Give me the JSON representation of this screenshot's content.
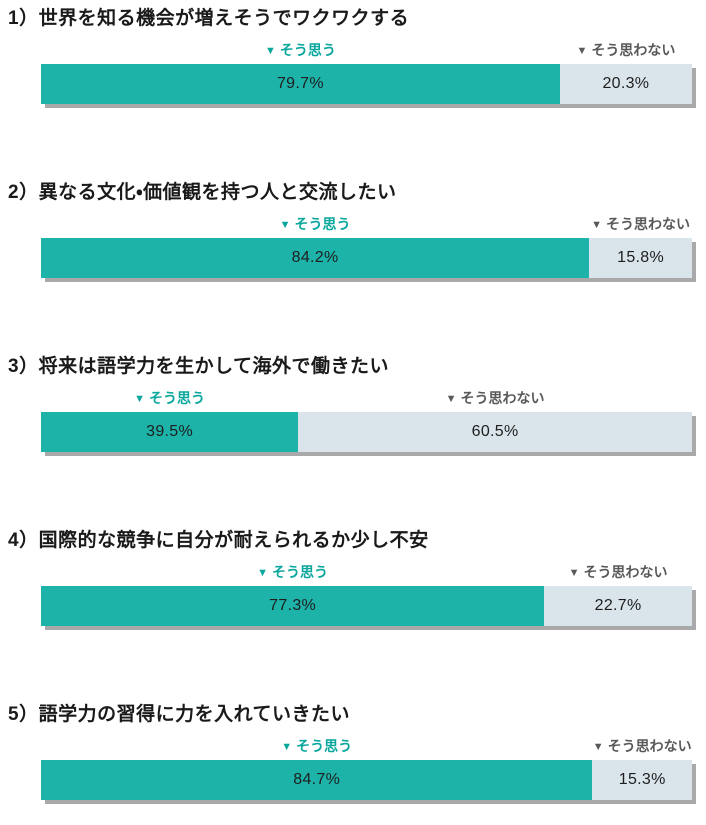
{
  "page": {
    "background": "#ffffff"
  },
  "colors": {
    "agree_bar": "#1db3a9",
    "disagree_bar": "#d9e5eb",
    "bar_shadow": "#a9a9a9",
    "agree_label_text": "#0aa79d",
    "disagree_label_text": "#595959",
    "title_text": "#1a1a1a",
    "value_text": "#1e1e1e"
  },
  "icons": {
    "triangle_down": "▼"
  },
  "legend": {
    "agree": "そう思う",
    "disagree": "そう思わない"
  },
  "chart_data": {
    "type": "bar",
    "subtype": "horizontal-stacked-percentage",
    "unit": "%",
    "xlim": [
      0,
      100
    ],
    "grid": false,
    "legend_position": "above-each-segment",
    "categories": [
      "1）世界を知る機会が増えそうでワクワクする",
      "2）異なる文化・価値観を持つ人と交流したい",
      "3）将来は語学力を生かして海外で働きたい",
      "4）国際的な競争に自分が耐えられるか少し不安",
      "5）語学力の習得に力を入れていきたい"
    ],
    "series": [
      {
        "name": "そう思う",
        "values": [
          79.7,
          84.2,
          39.5,
          77.3,
          84.7
        ],
        "labels": [
          "79.7%",
          "84.2%",
          "39.5%",
          "77.3%",
          "84.7%"
        ]
      },
      {
        "name": "そう思わない",
        "values": [
          20.3,
          15.8,
          60.5,
          22.7,
          15.3
        ],
        "labels": [
          "20.3%",
          "15.8%",
          "60.5%",
          "22.7%",
          "15.3%"
        ]
      }
    ]
  }
}
